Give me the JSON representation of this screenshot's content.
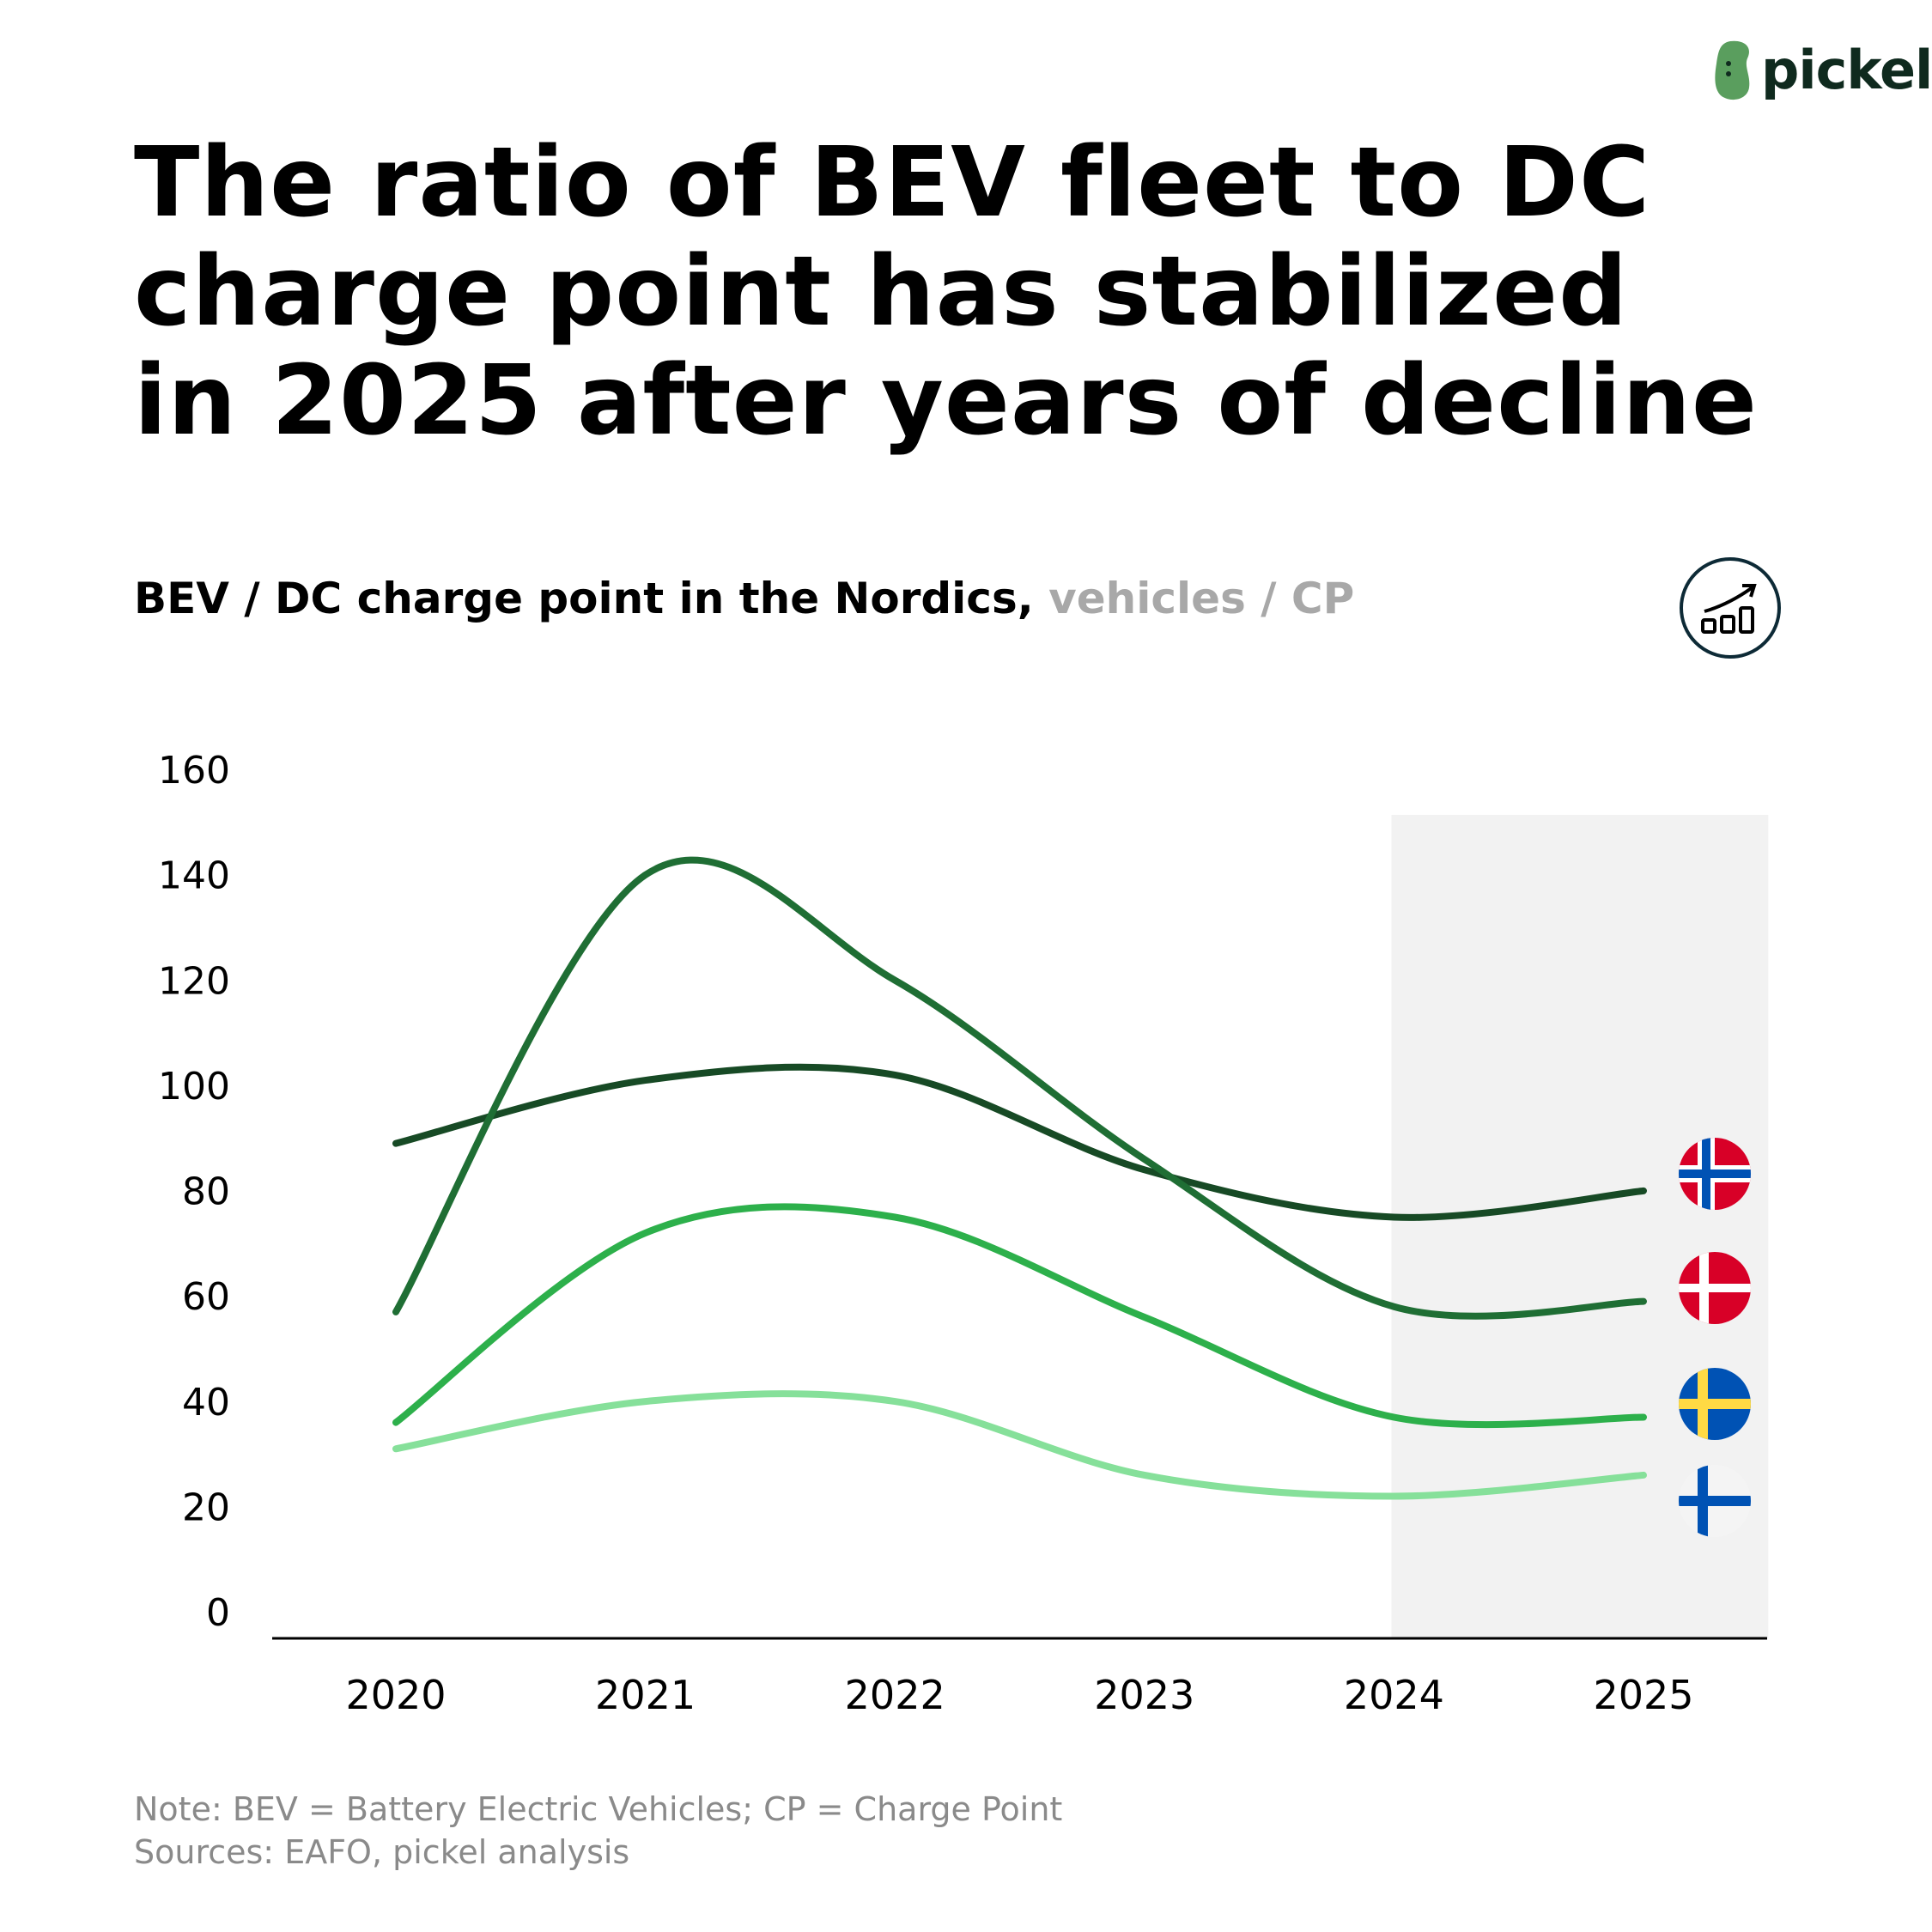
{
  "logo": {
    "text": "pickel",
    "icon": "pickle-bean-logo",
    "color": "#5a9e5e"
  },
  "title": "The ratio of BEV fleet to DC charge point has stabilized in 2025 after years of decline",
  "subtitle": {
    "main": "BEV / DC charge point in the Nordics,",
    "unit": "vehicles / CP"
  },
  "header_icon": "bar-chart-trend-icon",
  "notes": {
    "note": "Note: BEV = Battery Electric Vehicles; CP = Charge Point",
    "sources": "Sources: EAFO, pickel analysis"
  },
  "chart_data": {
    "type": "line",
    "title": "BEV / DC charge point in the Nordics, vehicles / CP",
    "xlabel": "",
    "ylabel": "",
    "x": [
      "2020",
      "2021",
      "2022",
      "2023",
      "2024",
      "2025"
    ],
    "ylim": [
      0,
      160
    ],
    "yticks": [
      "0",
      "20",
      "40",
      "60",
      "80",
      "100",
      "120",
      "140",
      "160"
    ],
    "grid": false,
    "smooth": true,
    "shaded_region": {
      "from": "2024",
      "to": "2025",
      "color": "#f2f2f2"
    },
    "series": [
      {
        "flag": "norway-flag-icon",
        "color": "#174a25",
        "values": [
          94,
          106,
          107,
          89,
          80,
          85
        ]
      },
      {
        "flag": "denmark-flag-icon",
        "color": "#1f6e34",
        "values": [
          62,
          145,
          125,
          91,
          63,
          64
        ]
      },
      {
        "flag": "sweden-flag-icon",
        "color": "#2db04b",
        "values": [
          41,
          77,
          80,
          61,
          42,
          42
        ]
      },
      {
        "flag": "finland-flag-icon",
        "color": "#86e09a",
        "values": [
          36,
          45,
          45,
          31,
          27,
          31
        ]
      }
    ]
  }
}
